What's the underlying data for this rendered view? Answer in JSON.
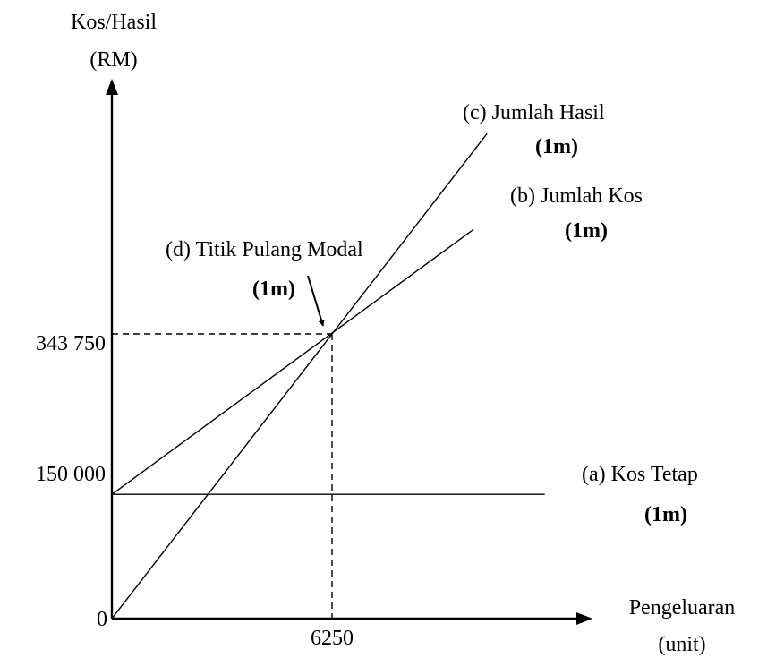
{
  "chart_data": {
    "type": "line",
    "ylabel": [
      "Kos/Hasil",
      "(RM)"
    ],
    "xlabel": [
      "Pengeluaran",
      "(unit)"
    ],
    "origin_label": "0",
    "x_ticks": [
      6250
    ],
    "y_ticks": [
      "150 000",
      "343 750"
    ],
    "x_tick_labels": [
      "6250"
    ],
    "break_even": {
      "x": 6250,
      "y": 343750
    },
    "series": [
      {
        "name": "(a) Kos Tetap",
        "mark": "(1m)",
        "points": [
          [
            0,
            150000
          ],
          [
            12290,
            150000
          ]
        ]
      },
      {
        "name": "(b) Jumlah Kos",
        "mark": "(1m)",
        "points": [
          [
            0,
            150000
          ],
          [
            10270,
            470000
          ]
        ]
      },
      {
        "name": "(c) Jumlah Hasil",
        "mark": "(1m)",
        "points": [
          [
            0,
            0
          ],
          [
            10650,
            585700
          ]
        ]
      }
    ],
    "annotation": {
      "text": "(d) Titik Pulang Modal",
      "mark": "(1m)"
    }
  }
}
